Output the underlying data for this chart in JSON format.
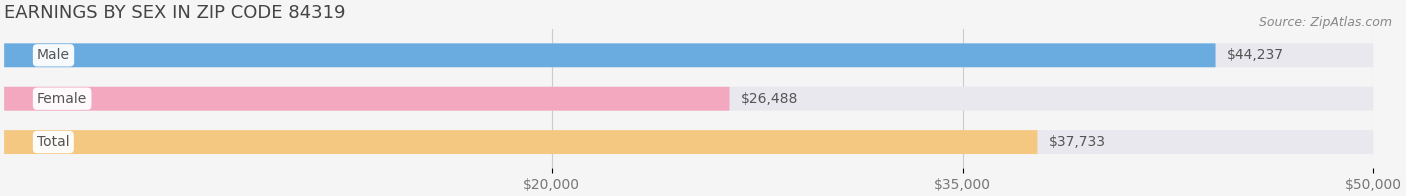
{
  "title": "EARNINGS BY SEX IN ZIP CODE 84319",
  "source": "Source: ZipAtlas.com",
  "categories": [
    "Male",
    "Female",
    "Total"
  ],
  "values": [
    44237,
    26488,
    37733
  ],
  "bar_colors": [
    "#6aabe0",
    "#f4a8c0",
    "#f5c882"
  ],
  "bar_bg_color": "#e8e8ee",
  "label_bg_color": "#ffffff",
  "xlim": [
    0,
    50000
  ],
  "xticks": [
    20000,
    35000,
    50000
  ],
  "xtick_labels": [
    "$20,000",
    "$35,000",
    "$50,000"
  ],
  "x_axis_start": 0,
  "title_fontsize": 13,
  "tick_fontsize": 10,
  "label_fontsize": 10,
  "value_fontsize": 10,
  "bar_height": 0.55,
  "figsize": [
    14.06,
    1.96
  ],
  "dpi": 100,
  "background_color": "#f5f5f5"
}
